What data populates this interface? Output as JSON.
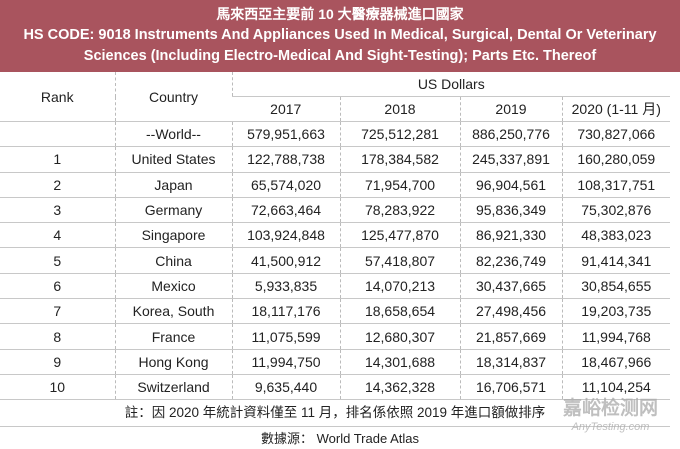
{
  "header": {
    "title": "馬來西亞主要前 10 大醫療器械進口國家",
    "subtitle_lines": [
      "HS CODE: 9018 Instruments And Appliances Used In Medical, Surgical, Dental Or Veterinary",
      "Sciences (Including Electro-Medical And Sight-Testing); Parts Etc. Thereof"
    ]
  },
  "table": {
    "rank_header": "Rank",
    "country_header": "Country",
    "group_header": "US Dollars",
    "years": [
      "2017",
      "2018",
      "2019",
      "2020 (1-11 月)"
    ],
    "rows": [
      {
        "country": "--World--",
        "values": [
          "579,951,663",
          "725,512,281",
          "886,250,776",
          "730,827,066"
        ]
      },
      {
        "rank": "1",
        "country": "United States",
        "values": [
          "122,788,738",
          "178,384,582",
          "245,337,891",
          "160,280,059"
        ]
      },
      {
        "rank": "2",
        "country": "Japan",
        "values": [
          "65,574,020",
          "71,954,700",
          "96,904,561",
          "108,317,751"
        ]
      },
      {
        "rank": "3",
        "country": "Germany",
        "values": [
          "72,663,464",
          "78,283,922",
          "95,836,349",
          "75,302,876"
        ]
      },
      {
        "rank": "4",
        "country": "Singapore",
        "values": [
          "103,924,848",
          "125,477,870",
          "86,921,330",
          "48,383,023"
        ]
      },
      {
        "rank": "5",
        "country": "China",
        "values": [
          "41,500,912",
          "57,418,807",
          "82,236,749",
          "91,414,341"
        ]
      },
      {
        "rank": "6",
        "country": "Mexico",
        "values": [
          "5,933,835",
          "14,070,213",
          "30,437,665",
          "30,854,655"
        ]
      },
      {
        "rank": "7",
        "country": "Korea, South",
        "values": [
          "18,117,176",
          "18,658,654",
          "27,498,456",
          "19,203,735"
        ]
      },
      {
        "rank": "8",
        "country": "France",
        "values": [
          "11,075,599",
          "12,680,307",
          "21,857,669",
          "11,994,768"
        ]
      },
      {
        "rank": "9",
        "country": "Hong Kong",
        "values": [
          "11,994,750",
          "14,301,688",
          "18,314,837",
          "18,467,966"
        ]
      },
      {
        "rank": "10",
        "country": "Switzerland",
        "values": [
          "9,635,440",
          "14,362,328",
          "16,706,571",
          "11,104,254"
        ]
      }
    ]
  },
  "footnote": "註：因 2020 年統計資料僅至 11 月，排名係依照 2019 年進口額做排序",
  "source": "數據源： World Trade Atlas",
  "watermark": {
    "name": "嘉峪检测网",
    "url": "AnyTesting.com"
  }
}
